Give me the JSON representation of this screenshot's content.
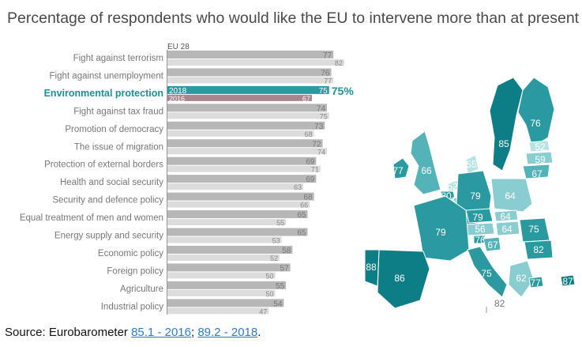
{
  "title": "Percentage of respondents who would like the EU to intervene more than at present",
  "footer": {
    "prefix": "Source: Eurobarometer ",
    "link1": "85.1 - 2016",
    "sep": "; ",
    "link2": "89.2 - 2018",
    "suffix": "."
  },
  "chart_data": [
    {
      "type": "bar",
      "orientation": "horizontal",
      "legend": "EU 28",
      "categories": [
        "Fight against terrorism",
        "Fight against unemployment",
        "Environmental protection",
        "Fight against tax fraud",
        "Promotion of democracy",
        "The issue of migration",
        "Protection of external borders",
        "Health and social security",
        "Security and defence policy",
        "Equal treatment of men and women",
        "Energy supply and security",
        "Economic policy",
        "Foreign policy",
        "Agriculture",
        "Industrial policy"
      ],
      "series": [
        {
          "name": "2018",
          "values": [
            77,
            76,
            75,
            74,
            73,
            72,
            69,
            69,
            68,
            65,
            65,
            58,
            57,
            55,
            54
          ]
        },
        {
          "name": "2016",
          "values": [
            82,
            77,
            67,
            75,
            68,
            74,
            71,
            63,
            66,
            55,
            53,
            52,
            50,
            50,
            47
          ]
        }
      ],
      "highlight": {
        "category": "Environmental protection",
        "value_label": "75%"
      },
      "colors": {
        "bar_2018": "#b7b7b7",
        "bar_2016": "#dcdcdc",
        "highlight_2018": "#2a9aa0",
        "highlight_2016": "#a9858d",
        "highlight_text": "#1f8f97"
      }
    },
    {
      "type": "choropleth",
      "regions": [
        {
          "name": "Ireland",
          "value": 77
        },
        {
          "name": "United Kingdom",
          "value": 66
        },
        {
          "name": "Sweden",
          "value": 85
        },
        {
          "name": "Finland",
          "value": 76
        },
        {
          "name": "Estonia",
          "value": 52
        },
        {
          "name": "Latvia",
          "value": 59
        },
        {
          "name": "Lithuania",
          "value": 67
        },
        {
          "name": "Denmark",
          "value": 55
        },
        {
          "name": "Netherlands",
          "value": 52
        },
        {
          "name": "Belgium",
          "value": 80
        },
        {
          "name": "Luxembourg",
          "value": 57
        },
        {
          "name": "Germany",
          "value": 79
        },
        {
          "name": "Poland",
          "value": 64
        },
        {
          "name": "Czechia",
          "value": 79
        },
        {
          "name": "Slovakia",
          "value": 64
        },
        {
          "name": "Austria",
          "value": 56
        },
        {
          "name": "Hungary",
          "value": 64
        },
        {
          "name": "Slovenia",
          "value": 76
        },
        {
          "name": "Croatia",
          "value": 67
        },
        {
          "name": "Romania",
          "value": 75
        },
        {
          "name": "France",
          "value": 79
        },
        {
          "name": "Spain",
          "value": 86
        },
        {
          "name": "Portugal",
          "value": 88
        },
        {
          "name": "Bulgaria",
          "value": 82
        },
        {
          "name": "Greece",
          "value": 62
        },
        {
          "name": "Italy",
          "value": 75
        },
        {
          "name": "Malta",
          "value": 77
        },
        {
          "name": "Cyprus",
          "value": 87
        },
        {
          "name": "Malta (inset)",
          "value": 82
        }
      ]
    }
  ]
}
